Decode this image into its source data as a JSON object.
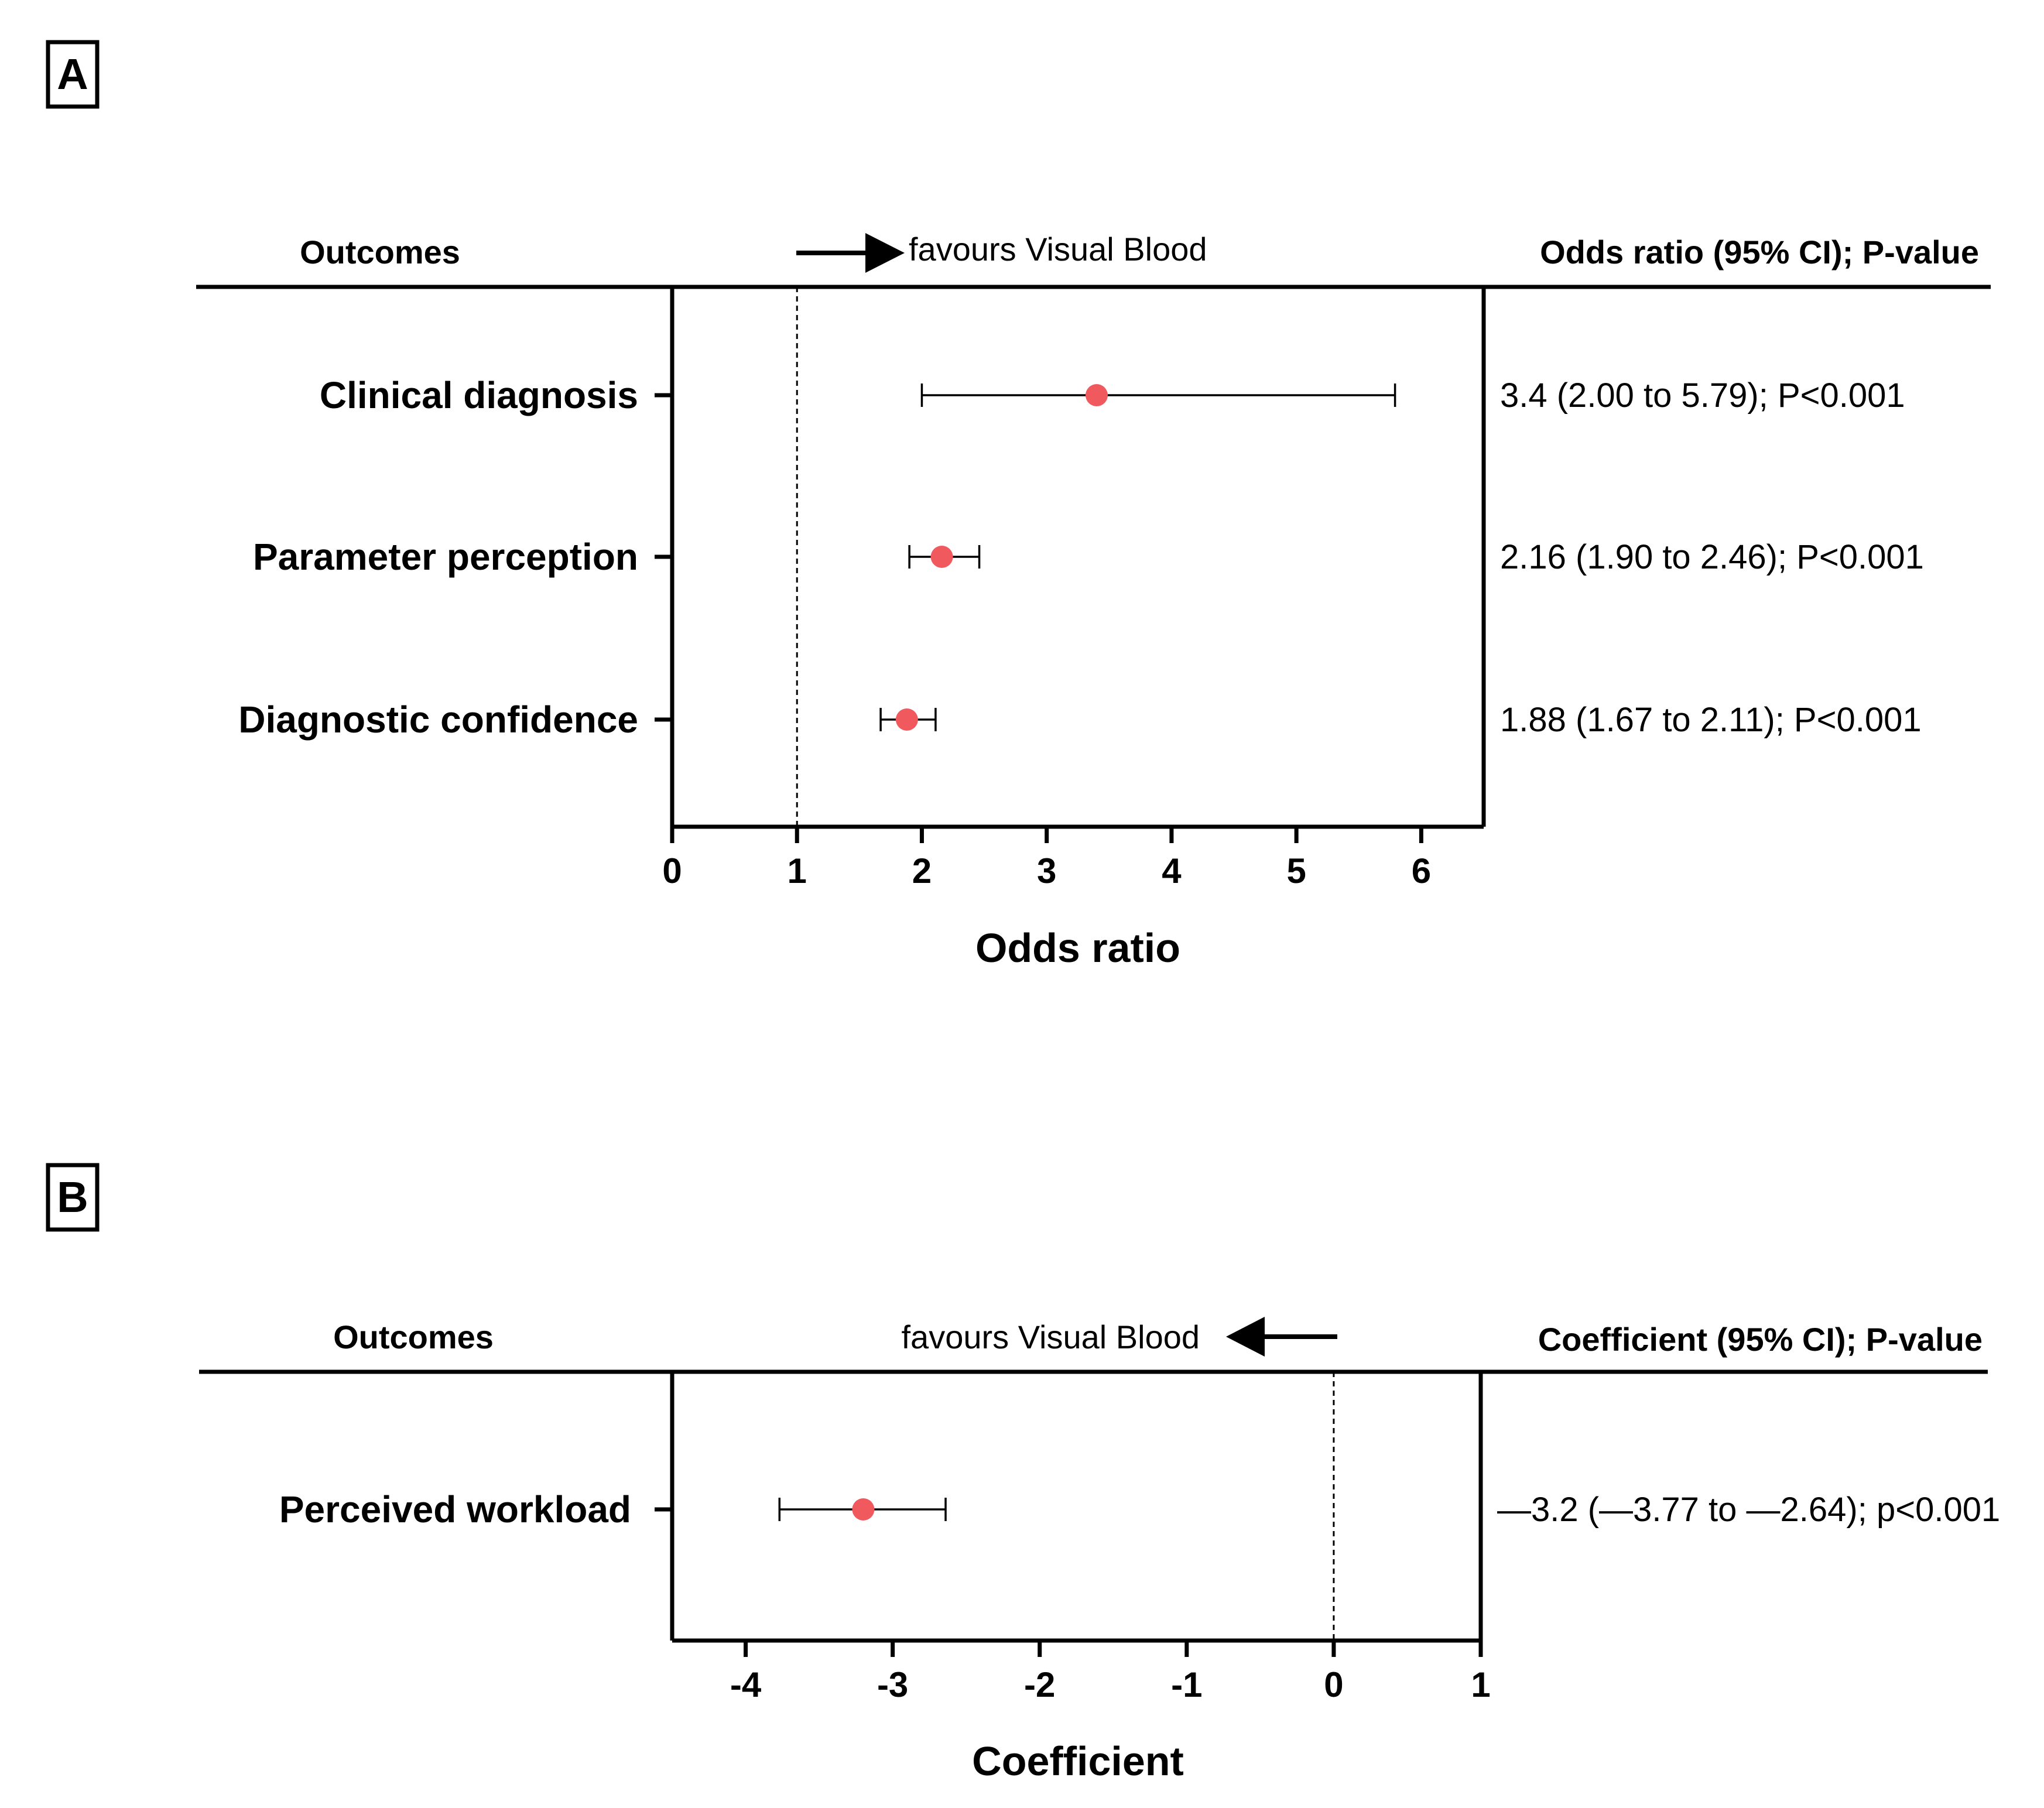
{
  "chart_data": [
    {
      "panel": "A",
      "type": "forest",
      "header_left": "Outcomes",
      "header_right": "Odds ratio (95% CI); P-value",
      "favours": "favours Visual Blood",
      "favours_arrow": "right",
      "xlabel": "Odds ratio",
      "xlim": [
        0,
        6.5
      ],
      "xticks": [
        0,
        1,
        2,
        3,
        4,
        5,
        6
      ],
      "tick_labels": [
        "0",
        "1",
        "2",
        "3",
        "4",
        "5",
        "6"
      ],
      "reference_line": 1,
      "marker_color": "#f05a5f",
      "rows": [
        {
          "label": "Clinical diagnosis",
          "estimate": 3.4,
          "lower": 2.0,
          "upper": 5.79,
          "text": "3.4 (2.00 to 5.79); P<0.001"
        },
        {
          "label": "Parameter perception",
          "estimate": 2.16,
          "lower": 1.9,
          "upper": 2.46,
          "text": "2.16 (1.90 to 2.46); P<0.001"
        },
        {
          "label": "Diagnostic confidence",
          "estimate": 1.88,
          "lower": 1.67,
          "upper": 2.11,
          "text": "1.88 (1.67 to 2.11); P<0.001"
        }
      ]
    },
    {
      "panel": "B",
      "type": "forest",
      "header_left": "Outcomes",
      "header_right": "Coefficient (95% CI); P-value",
      "favours": "favours Visual Blood",
      "favours_arrow": "left",
      "xlabel": "Coefficient",
      "xlim": [
        -4.5,
        1
      ],
      "xticks": [
        -4,
        -3,
        -2,
        -1,
        0,
        1
      ],
      "tick_labels": [
        "-4",
        "-3",
        "-2",
        "-1",
        "0",
        "1"
      ],
      "reference_line": 0,
      "marker_color": "#f05a5f",
      "rows": [
        {
          "label": "Perceived workload",
          "estimate": -3.2,
          "lower": -3.77,
          "upper": -2.64,
          "text": "—3.2 (—3.77 to —2.64); p<0.001"
        }
      ]
    }
  ]
}
